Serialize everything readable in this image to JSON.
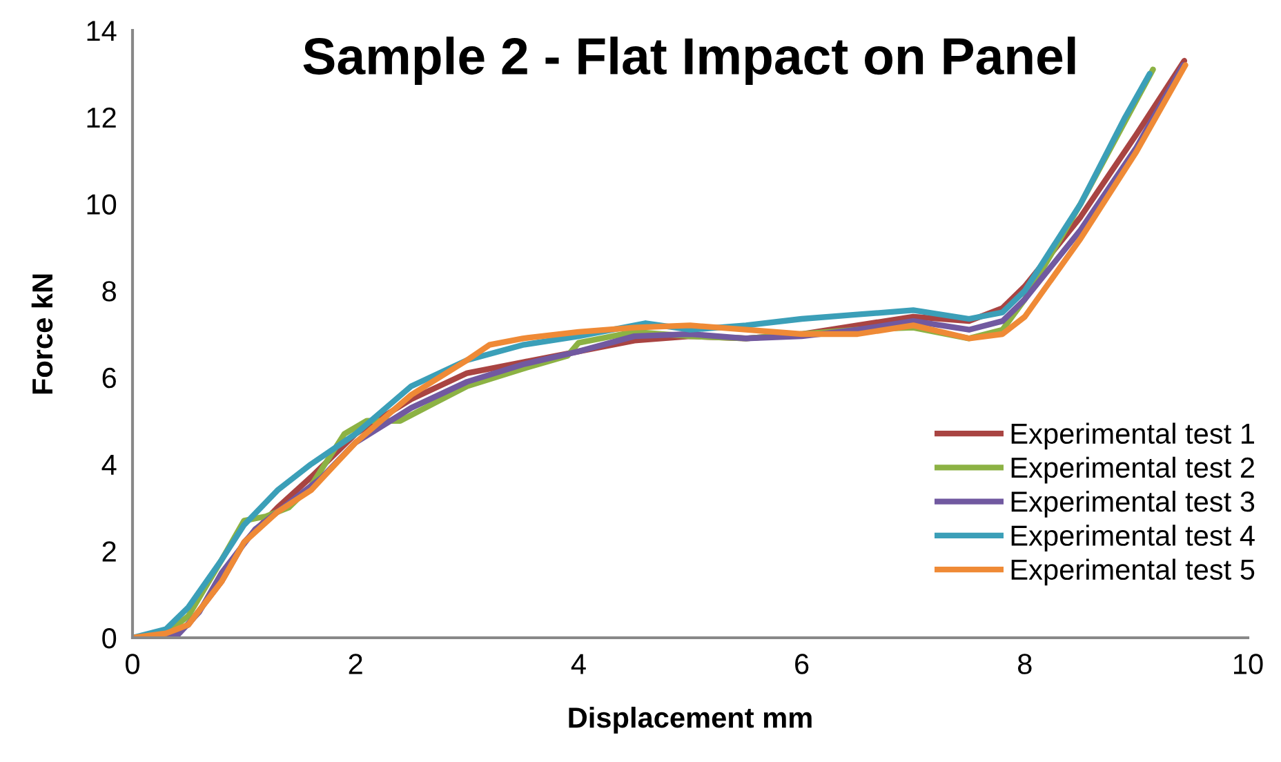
{
  "chart_data": {
    "type": "line",
    "title": "Sample 2 - Flat Impact on Panel",
    "xlabel": "Displacement mm",
    "ylabel": "Force kN",
    "xlim": [
      0,
      10
    ],
    "xticks": [
      0,
      2,
      4,
      6,
      8,
      10
    ],
    "ylim": [
      0,
      14
    ],
    "yticks": [
      0,
      2,
      4,
      6,
      8,
      10,
      12,
      14
    ],
    "grid": false,
    "legend": "right",
    "marker": "none",
    "line_style": "solid",
    "series": [
      {
        "name": "Experimental test 1",
        "color": "#a94442",
        "x": [
          0,
          0.3,
          0.5,
          0.8,
          1.0,
          1.3,
          1.6,
          2.0,
          2.5,
          3.0,
          3.5,
          4.0,
          4.5,
          5.0,
          5.5,
          6.0,
          6.5,
          7.0,
          7.5,
          7.8,
          8.0,
          8.5,
          9.0,
          9.43
        ],
        "values": [
          0,
          0.05,
          0.3,
          1.3,
          2.2,
          3.0,
          3.7,
          4.7,
          5.5,
          6.1,
          6.35,
          6.6,
          6.85,
          6.95,
          6.9,
          7.0,
          7.2,
          7.4,
          7.3,
          7.6,
          8.1,
          9.7,
          11.6,
          13.3
        ]
      },
      {
        "name": "Experimental test 2",
        "color": "#8cb244",
        "x": [
          0,
          0.3,
          0.5,
          0.8,
          1.0,
          1.2,
          1.4,
          1.6,
          1.9,
          2.1,
          2.4,
          2.7,
          3.0,
          3.5,
          3.9,
          4.0,
          4.5,
          5.0,
          5.5,
          6.0,
          6.5,
          7.0,
          7.5,
          7.8,
          8.0,
          8.5,
          9.15
        ],
        "values": [
          0,
          0.1,
          0.5,
          1.8,
          2.7,
          2.8,
          3.0,
          3.5,
          4.7,
          5.0,
          5.0,
          5.4,
          5.8,
          6.2,
          6.5,
          6.8,
          7.05,
          6.95,
          6.9,
          7.0,
          7.1,
          7.15,
          6.9,
          7.1,
          7.8,
          10.0,
          13.1
        ]
      },
      {
        "name": "Experimental test 3",
        "color": "#7159a0",
        "x": [
          0,
          0.4,
          0.6,
          0.8,
          1.1,
          1.4,
          1.7,
          2.0,
          2.5,
          3.0,
          3.5,
          4.0,
          4.5,
          5.0,
          5.5,
          6.0,
          6.5,
          7.0,
          7.5,
          7.8,
          8.0,
          8.5,
          9.0,
          9.42
        ],
        "values": [
          0,
          0.05,
          0.6,
          1.5,
          2.5,
          3.1,
          3.7,
          4.5,
          5.3,
          5.9,
          6.3,
          6.6,
          6.95,
          7.0,
          6.9,
          6.95,
          7.1,
          7.3,
          7.1,
          7.3,
          7.8,
          9.4,
          11.3,
          13.2
        ]
      },
      {
        "name": "Experimental test 4",
        "color": "#3b9fb8",
        "x": [
          0,
          0.3,
          0.5,
          0.8,
          1.0,
          1.3,
          1.6,
          2.0,
          2.5,
          3.0,
          3.5,
          4.0,
          4.6,
          5.0,
          5.5,
          6.0,
          6.5,
          7.0,
          7.5,
          7.8,
          8.0,
          8.5,
          8.9,
          9.12
        ],
        "values": [
          0,
          0.2,
          0.7,
          1.8,
          2.6,
          3.4,
          4.0,
          4.7,
          5.8,
          6.4,
          6.75,
          6.95,
          7.25,
          7.1,
          7.2,
          7.35,
          7.45,
          7.55,
          7.35,
          7.5,
          8.0,
          10.0,
          12.0,
          13.0
        ]
      },
      {
        "name": "Experimental test 5",
        "color": "#ef8a36",
        "x": [
          0,
          0.3,
          0.5,
          0.8,
          1.0,
          1.3,
          1.6,
          2.0,
          2.5,
          3.0,
          3.2,
          3.5,
          4.0,
          4.5,
          5.0,
          5.5,
          6.0,
          6.5,
          7.0,
          7.5,
          7.8,
          8.0,
          8.5,
          9.0,
          9.44
        ],
        "values": [
          0,
          0.1,
          0.3,
          1.3,
          2.2,
          2.9,
          3.4,
          4.5,
          5.6,
          6.4,
          6.75,
          6.9,
          7.05,
          7.15,
          7.2,
          7.1,
          7.0,
          7.0,
          7.2,
          6.9,
          7.0,
          7.4,
          9.2,
          11.2,
          13.2
        ]
      }
    ]
  }
}
